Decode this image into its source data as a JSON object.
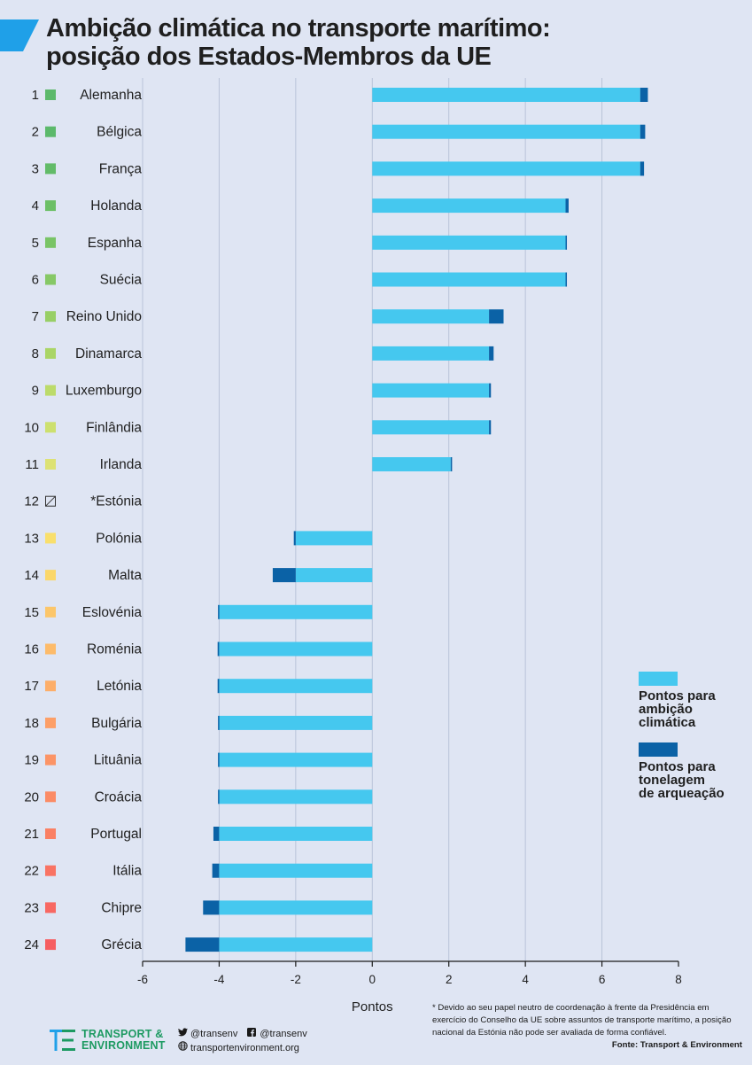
{
  "title_lines": [
    "Ambição climática no transporte marítimo:",
    "posição dos Estados-Membros da UE"
  ],
  "chart_data": {
    "type": "bar",
    "orientation": "horizontal",
    "stacked": true,
    "xlabel": "Pontos",
    "xlim": [
      -6,
      8
    ],
    "xticks": [
      -6,
      -4,
      -2,
      0,
      2,
      4,
      6,
      8
    ],
    "grid": "vertical",
    "legend_position": "right",
    "rows": [
      {
        "rank": "1",
        "country": "Alemanha",
        "color": "#5cb96b",
        "ambition": 7.0,
        "tonnage": 0.2
      },
      {
        "rank": "2",
        "country": "Bélgica",
        "color": "#5cb96b",
        "ambition": 7.0,
        "tonnage": 0.13
      },
      {
        "rank": "3",
        "country": "França",
        "color": "#62bb68",
        "ambition": 7.0,
        "tonnage": 0.1
      },
      {
        "rank": "4",
        "country": "Holanda",
        "color": "#6cbf66",
        "ambition": 5.05,
        "tonnage": 0.08
      },
      {
        "rank": "5",
        "country": "Espanha",
        "color": "#79c466",
        "ambition": 5.05,
        "tonnage": 0.02
      },
      {
        "rank": "6",
        "country": "Suécia",
        "color": "#86c866",
        "ambition": 5.05,
        "tonnage": 0.02
      },
      {
        "rank": "7",
        "country": "Reino Unido",
        "color": "#98cf66",
        "ambition": 3.05,
        "tonnage": 0.38
      },
      {
        "rank": "8",
        "country": "Dinamarca",
        "color": "#aad566",
        "ambition": 3.05,
        "tonnage": 0.12
      },
      {
        "rank": "9",
        "country": "Luxemburgo",
        "color": "#bcdb6a",
        "ambition": 3.05,
        "tonnage": 0.05
      },
      {
        "rank": "10",
        "country": "Finlândia",
        "color": "#cde06e",
        "ambition": 3.05,
        "tonnage": 0.05
      },
      {
        "rank": "11",
        "country": "Irlanda",
        "color": "#dde274",
        "ambition": 2.05,
        "tonnage": 0.03
      },
      {
        "rank": "12",
        "country": "*Estónia",
        "color": "none",
        "ambition": null,
        "tonnage": null
      },
      {
        "rank": "13",
        "country": "Polónia",
        "color": "#f9df6c",
        "ambition": -2.0,
        "tonnage": -0.05
      },
      {
        "rank": "14",
        "country": "Malta",
        "color": "#fbd76a",
        "ambition": -2.0,
        "tonnage": -0.6
      },
      {
        "rank": "15",
        "country": "Eslovénia",
        "color": "#fcc66a",
        "ambition": -4.0,
        "tonnage": -0.03
      },
      {
        "rank": "16",
        "country": "Roménia",
        "color": "#fdbb6a",
        "ambition": -4.0,
        "tonnage": -0.04
      },
      {
        "rank": "17",
        "country": "Letónia",
        "color": "#fdae69",
        "ambition": -4.0,
        "tonnage": -0.04
      },
      {
        "rank": "18",
        "country": "Bulgária",
        "color": "#fd9f67",
        "ambition": -4.0,
        "tonnage": -0.03
      },
      {
        "rank": "19",
        "country": "Lituânia",
        "color": "#fc9466",
        "ambition": -4.0,
        "tonnage": -0.03
      },
      {
        "rank": "20",
        "country": "Croácia",
        "color": "#fb8b65",
        "ambition": -4.0,
        "tonnage": -0.03
      },
      {
        "rank": "21",
        "country": "Portugal",
        "color": "#fa8064",
        "ambition": -4.0,
        "tonnage": -0.15
      },
      {
        "rank": "22",
        "country": "Itália",
        "color": "#f97363",
        "ambition": -4.0,
        "tonnage": -0.18
      },
      {
        "rank": "23",
        "country": "Chipre",
        "color": "#f86862",
        "ambition": -4.0,
        "tonnage": -0.42
      },
      {
        "rank": "24",
        "country": "Grécia",
        "color": "#f65e61",
        "ambition": -4.0,
        "tonnage": -0.88
      }
    ],
    "series": [
      {
        "name": "Pontos para ambição climática",
        "color": "#45c8ef"
      },
      {
        "name": "Pontos para tonelagem de arqueação",
        "color": "#0b62a6"
      }
    ]
  },
  "legend": {
    "ambition_lines": [
      "Pontos para",
      "ambição",
      "climática"
    ],
    "tonnage_lines": [
      "Pontos para",
      "tonelagem",
      "de arqueação"
    ]
  },
  "footnote": {
    "text": "* Devido ao seu papel neutro de coordenação à frente da Presidência em exercício do Conselho da UE sobre assuntos de transporte marítimo, a posição nacional da Estónia não pode ser avaliada de forma confiável.",
    "source": "Fonte: Transport & Environment"
  },
  "brand": {
    "line1": "TRANSPORT &",
    "line2": "ENVIRONMENT"
  },
  "socials": {
    "twitter": "@transenv",
    "facebook": "@transenv",
    "website": "transportenvironment.org"
  },
  "icons": [
    "corner-mark",
    "brand-logo-icon",
    "twitter-icon",
    "facebook-icon",
    "globe-icon"
  ]
}
